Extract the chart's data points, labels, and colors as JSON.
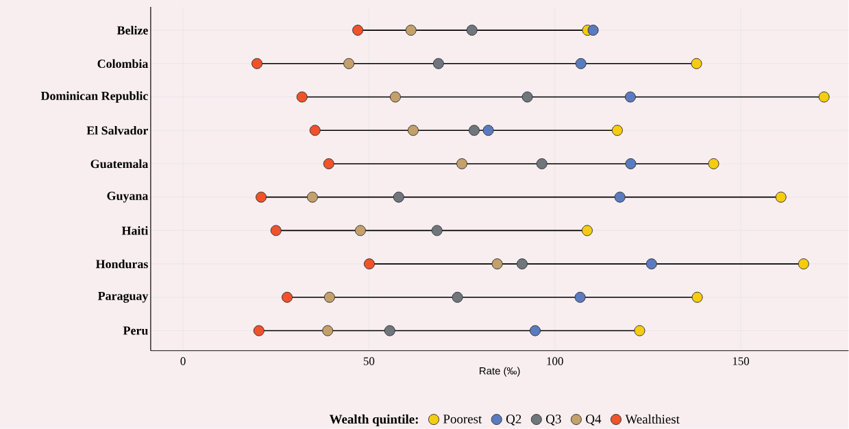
{
  "chart_data": {
    "type": "scatter",
    "orientation": "horizontal",
    "xlabel": "Rate (‰)",
    "legend_title": "Wealth quintile:",
    "legend": "bottom",
    "grid": true,
    "marker": "circle",
    "categories": [
      "Belize",
      "Colombia",
      "Dominican Republic",
      "El Salvador",
      "Guatemala",
      "Guyana",
      "Haiti",
      "Honduras",
      "Paraguay",
      "Peru"
    ],
    "xlim": [
      -8.7,
      179
    ],
    "xticks": [
      0,
      50,
      100,
      150
    ],
    "series": [
      {
        "name": "Poorest",
        "color": "#f5cc0f",
        "values": [
          108.8,
          138.1,
          172.4,
          116.8,
          142.7,
          160.8,
          108.7,
          166.9,
          138.3,
          122.8
        ]
      },
      {
        "name": "Q2",
        "color": "#5b7bc0",
        "values": [
          110.3,
          107,
          120.3,
          82.1,
          120.4,
          117.5,
          null,
          126,
          106.8,
          94.7
        ]
      },
      {
        "name": "Q3",
        "color": "#6f767c",
        "values": [
          77.7,
          68.7,
          92.6,
          78.3,
          96.5,
          58,
          68.3,
          91.2,
          73.8,
          55.6
        ]
      },
      {
        "name": "Q4",
        "color": "#c4a06a",
        "values": [
          61.3,
          44.6,
          57.1,
          61.9,
          75,
          34.8,
          47.7,
          84.5,
          39.4,
          38.9
        ]
      },
      {
        "name": "Wealthiest",
        "color": "#f0522a",
        "values": [
          47,
          19.9,
          32,
          35.5,
          39.2,
          21,
          25,
          50.1,
          28,
          20.4
        ]
      }
    ]
  }
}
